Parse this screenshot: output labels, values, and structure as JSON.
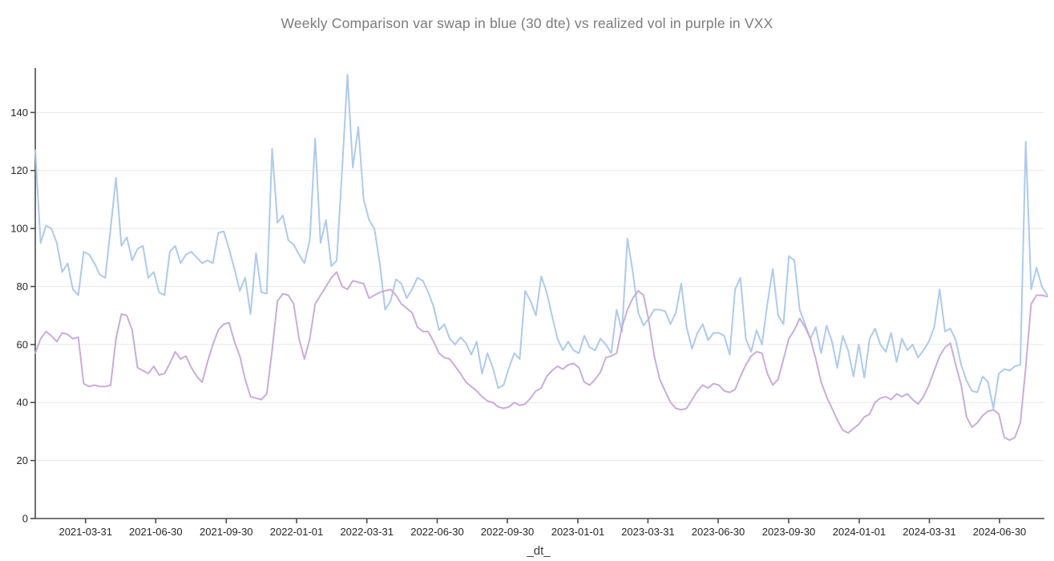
{
  "header": {
    "title": "Weekly Comparison var swap in blue (30 dte) vs realized vol in purple in VXX"
  },
  "chart_data": {
    "type": "line",
    "title": "Weekly Comparison var swap in blue (30 dte) vs realized vol in purple in VXX",
    "xlabel": "_dt_",
    "ylabel": "",
    "ylim": [
      0,
      155.3
    ],
    "y_ticks": [
      0,
      20,
      40,
      60,
      80,
      100,
      120,
      140
    ],
    "grid": "horizontal light gray, dark outer axes with outward ticks",
    "legend_position": "none (series identified in title)",
    "x_description": "weekly observations from late Jan 2021 to late Aug 2024",
    "x_tick_labels": [
      "2021-03-31",
      "2021-06-30",
      "2021-09-30",
      "2022-01-01",
      "2022-03-31",
      "2022-06-30",
      "2022-09-30",
      "2023-01-01",
      "2023-03-31",
      "2023-06-30",
      "2023-09-30",
      "2024-01-01",
      "2024-03-31",
      "2024-06-30"
    ],
    "x_tick_positions": [
      9.34,
      22.38,
      35.48,
      48.54,
      61.6,
      74.67,
      87.7,
      100.8,
      113.82,
      126.86,
      139.96,
      153.07,
      166.1,
      179.13
    ],
    "series": [
      {
        "name": "var swap (30 dte)",
        "color": "#aac7ea",
        "values": [
          127,
          95,
          101,
          100,
          95,
          85,
          88,
          79,
          77,
          92,
          91,
          88,
          84,
          83,
          100,
          117.5,
          94,
          97,
          89,
          93,
          94,
          83,
          85,
          78,
          77,
          92,
          94,
          88,
          91,
          92,
          90,
          88,
          89,
          88,
          98.5,
          99,
          93,
          86,
          78.5,
          83,
          70.5,
          91.5,
          78,
          77.5,
          127.5,
          102,
          104.5,
          96,
          94.5,
          91,
          88,
          96,
          131,
          95,
          103,
          87,
          89,
          120,
          153,
          121,
          135,
          110,
          103,
          100,
          88,
          72,
          75,
          82.5,
          81,
          76,
          79,
          83,
          82,
          78,
          73,
          65,
          67,
          62,
          60,
          62.5,
          60.5,
          56.5,
          61,
          50,
          57,
          52,
          45,
          46,
          52,
          57,
          55,
          78.5,
          75,
          70,
          83.5,
          78,
          70,
          62,
          58,
          61,
          58,
          57,
          63,
          59,
          58,
          62,
          60,
          57,
          72,
          64.5,
          96.5,
          85,
          71,
          66.5,
          69,
          72,
          72,
          71.5,
          67,
          71,
          81,
          66,
          58.5,
          64,
          67,
          61.5,
          64,
          64,
          63,
          56.5,
          79,
          83,
          62,
          57.5,
          65,
          60,
          74,
          86,
          70,
          67,
          90.5,
          89,
          72,
          67,
          62,
          66,
          57,
          66.5,
          61,
          52,
          63,
          58,
          49,
          60,
          48.5,
          62,
          65.5,
          60,
          57.5,
          64,
          54,
          62,
          58,
          60,
          55.5,
          58,
          61,
          66,
          79,
          64.5,
          65.5,
          61.5,
          53,
          47.5,
          44,
          43.5,
          49,
          47,
          38,
          50,
          51.5,
          51,
          52.5,
          53,
          130,
          79,
          86.5,
          80,
          77
        ]
      },
      {
        "name": "realized vol",
        "color": "#c7a8d8",
        "values": [
          57,
          62,
          64.5,
          63,
          61,
          64,
          63.5,
          62,
          62.5,
          46.5,
          45.5,
          46,
          45.5,
          45.5,
          46,
          62,
          70.5,
          70,
          65,
          52,
          51,
          50,
          52.5,
          49.5,
          50,
          53.5,
          57.5,
          55,
          56,
          52,
          49,
          47,
          54,
          60,
          65,
          67,
          67.5,
          61,
          56,
          48,
          42,
          41.5,
          41,
          43,
          58,
          75,
          77.5,
          77,
          74,
          62,
          55,
          62,
          74,
          77,
          80,
          83,
          85,
          80,
          79,
          82,
          81.5,
          81,
          76,
          77,
          78,
          78.5,
          79,
          77,
          74,
          72.5,
          71,
          66,
          64.5,
          64.5,
          61,
          57,
          55.5,
          55,
          52.5,
          50,
          47,
          45.5,
          44,
          42,
          40.5,
          40,
          38.5,
          38,
          38.5,
          40,
          39,
          39.5,
          41.5,
          44,
          45,
          49,
          51,
          52.5,
          51.5,
          53,
          53.5,
          52,
          47,
          46,
          48,
          50.5,
          55.5,
          56,
          57,
          66,
          72,
          76,
          78.5,
          77,
          68,
          56,
          48,
          44,
          40,
          38,
          37.5,
          38,
          41,
          44,
          46,
          45,
          46.5,
          46,
          44,
          43.5,
          44.5,
          49,
          53,
          56,
          57.5,
          57,
          50,
          46,
          48,
          55,
          62,
          65,
          69,
          66,
          62,
          55,
          47,
          42,
          38,
          34,
          30.5,
          29.5,
          31,
          32.5,
          35,
          36,
          40,
          41.5,
          42,
          41,
          43,
          42,
          43,
          41,
          39.5,
          42,
          46,
          51,
          56,
          59,
          60.5,
          53,
          46,
          35,
          31.5,
          33,
          35.5,
          37,
          37.5,
          36,
          28,
          27,
          28,
          33,
          52,
          74,
          77,
          77,
          76.5
        ]
      }
    ]
  },
  "colors": {
    "background": "#ffffff",
    "title_text": "#7b7b7b",
    "tick_text": "#262626",
    "axis_line": "#4a4a4a",
    "gridline": "#e7e7e7",
    "var_swap_line": "#aac7ea",
    "realized_vol_line": "#c7a8d8"
  }
}
